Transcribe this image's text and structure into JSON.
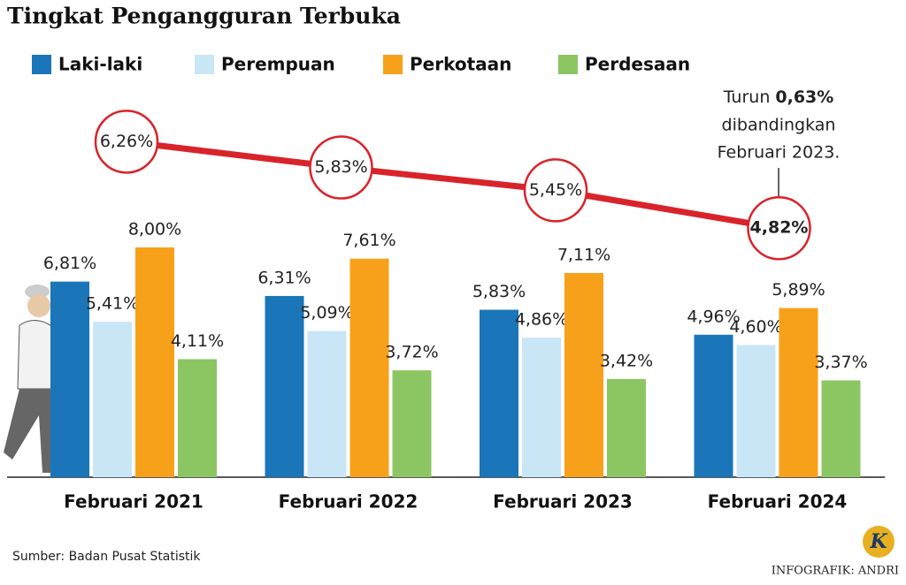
{
  "chart_data": {
    "type": "bar",
    "title": "Tingkat Pengangguran Terbuka",
    "categories": [
      "Februari 2021",
      "Februari 2022",
      "Februari 2023",
      "Februari 2024"
    ],
    "series": [
      {
        "name": "Laki-laki",
        "color": "#1a76b8",
        "values": [
          6.81,
          6.31,
          5.83,
          4.96
        ],
        "value_labels": [
          "6,81%",
          "6,31%",
          "5,83%",
          "4,96%"
        ]
      },
      {
        "name": "Perempuan",
        "color": "#c9e6f7",
        "values": [
          5.41,
          5.09,
          4.86,
          4.6
        ],
        "value_labels": [
          "5,41%",
          "5,09%",
          "4,86%",
          "4,60%"
        ]
      },
      {
        "name": "Perkotaan",
        "color": "#f7a11a",
        "values": [
          8.0,
          7.61,
          7.11,
          5.89
        ],
        "value_labels": [
          "8,00%",
          "7,61%",
          "7,11%",
          "5,89%"
        ]
      },
      {
        "name": "Perdesaan",
        "color": "#8cc663",
        "values": [
          4.11,
          3.72,
          3.42,
          3.37
        ],
        "value_labels": [
          "4,11%",
          "3,72%",
          "3,42%",
          "3,37%"
        ]
      }
    ],
    "line": {
      "color": "#d9232a",
      "values": [
        6.26,
        5.83,
        5.45,
        4.82
      ],
      "value_labels": [
        "6,26%",
        "5,83%",
        "5,45%",
        "4,82%"
      ]
    },
    "annotation": [
      "Turun",
      "0,63%",
      "dibandingkan",
      "Februari 2023."
    ],
    "source": "Sumber: Badan Pusat Statistik",
    "credit": "INFOGRAFIK: ANDRI",
    "logo": "K"
  }
}
